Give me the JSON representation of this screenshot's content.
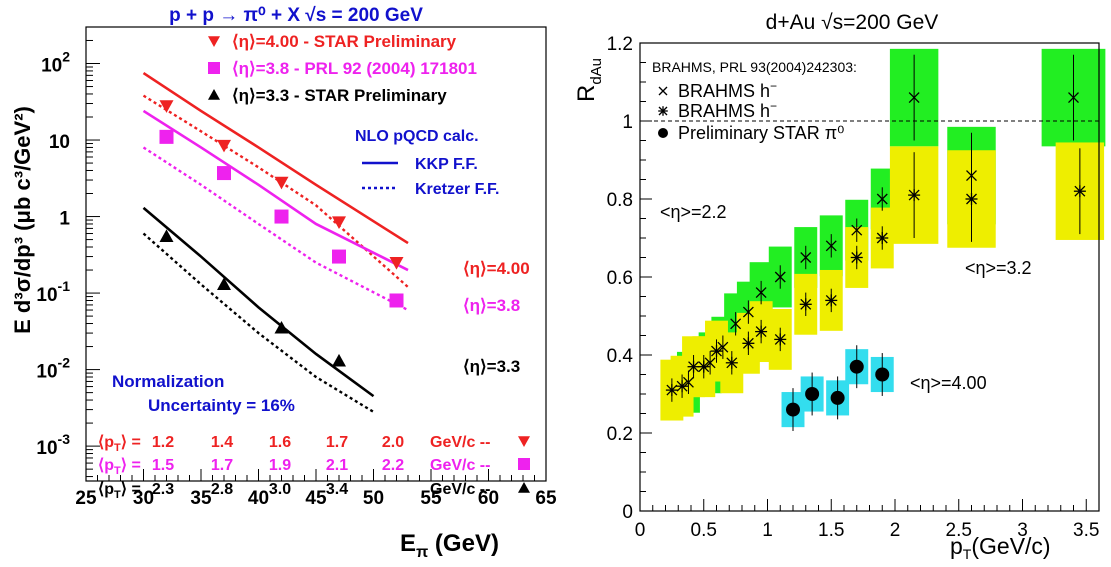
{
  "colors": {
    "red": "#ee2222",
    "magenta": "#ee22ee",
    "black": "#000000",
    "blue": "#1111cc",
    "green": "#22ee22",
    "yellow": "#eeee00",
    "cyan": "#33ddee"
  },
  "left": {
    "title": "p + p → π⁰ + X   √s = 200 GeV",
    "xlabel": "E",
    "xlabel_sub": "π",
    "xlabel_unit": " (GeV)",
    "ylabel": "E d³σ/dp³ (μb c³/GeV²)",
    "legend": {
      "red": "⟨η⟩=4.00 - STAR Preliminary",
      "magenta": "⟨η⟩=3.8 - PRL 92 (2004) 171801",
      "black": "⟨η⟩=3.3 - STAR Preliminary"
    },
    "calc_title": "NLO pQCD calc.",
    "calc_kkp": "KKP F.F.",
    "calc_kretzer": "Kretzer F.F.",
    "eta_labels": {
      "red": "⟨η⟩=4.00",
      "magenta": "⟨η⟩=3.8",
      "black": "⟨η⟩=3.3"
    },
    "norm_line1": "Normalization",
    "norm_line2": "Uncertainty = 16%",
    "pt_rows": [
      {
        "label": "⟨p",
        "sub": "T",
        "close": "⟩ =",
        "values": [
          "1.2",
          "1.4",
          "1.6",
          "1.7",
          "2.0"
        ],
        "unit": "GeV/c  --"
      },
      {
        "label": "⟨p",
        "sub": "T",
        "close": "⟩ =",
        "values": [
          "1.5",
          "1.7",
          "1.9",
          "2.1",
          "2.2"
        ],
        "unit": "GeV/c  --"
      },
      {
        "label": "⟨p",
        "sub": "T",
        "close": "⟩ =",
        "values": [
          "2.3",
          "2.8",
          "3.0",
          "3.4",
          ""
        ],
        "unit": "GeV/c  --"
      }
    ],
    "x_ticks": [
      "25",
      "30",
      "35",
      "40",
      "45",
      "50",
      "55",
      "60",
      "65"
    ],
    "y_ticks": [
      {
        "value": 100,
        "main": "10",
        "sup": "2"
      },
      {
        "value": 10,
        "main": "10",
        "sup": ""
      },
      {
        "value": 1,
        "main": "1",
        "sup": ""
      },
      {
        "value": 0.1,
        "main": "10",
        "sup": "-1"
      },
      {
        "value": 0.01,
        "main": "10",
        "sup": "-2"
      },
      {
        "value": 0.001,
        "main": "10",
        "sup": "-3"
      }
    ]
  },
  "right": {
    "title": "d+Au √s=200 GeV",
    "ylabel": "R",
    "ylabel_sub": "dAu",
    "xlabel": "p",
    "xlabel_sub": "T",
    "xlabel_unit": "(GeV/c)",
    "legend_head": "BRAHMS, PRL 93(2004)242303:",
    "legend_items": [
      "BRAHMS h",
      "BRAHMS h",
      "Preliminary STAR π⁰"
    ],
    "legend_sups": [
      "−",
      "−",
      ""
    ],
    "eta_labels": [
      "<η>=2.2",
      "<η>=3.2",
      "<η>=4.00"
    ],
    "x_ticks": [
      "0",
      "0.5",
      "1",
      "1.5",
      "2",
      "2.5",
      "3",
      "3.5"
    ],
    "y_ticks": [
      "0",
      "0.2",
      "0.4",
      "0.6",
      "0.8",
      "1",
      "1.2"
    ]
  },
  "chart_data": [
    {
      "type": "scatter",
      "title": "p + p → π⁰ + X   √s = 200 GeV",
      "xlabel": "E_π (GeV)",
      "ylabel": "E d³σ/dp³ (μb c³/GeV²)",
      "xlim": [
        25,
        65
      ],
      "ylim": [
        0.00035,
        300
      ],
      "yscale": "log",
      "series": [
        {
          "name": "⟨η⟩=4.00 - STAR Preliminary",
          "marker": "triangle-down",
          "color": "#ee2222",
          "x": [
            32,
            37,
            42,
            47,
            52
          ],
          "y": [
            28,
            8.5,
            2.8,
            0.85,
            0.25
          ]
        },
        {
          "name": "⟨η⟩=3.8 - PRL 92 (2004) 171801",
          "marker": "square",
          "color": "#ee22ee",
          "x": [
            32,
            37,
            42,
            47,
            52
          ],
          "y": [
            11,
            3.7,
            1.0,
            0.3,
            0.08
          ]
        },
        {
          "name": "⟨η⟩=3.3 - STAR Preliminary",
          "marker": "triangle-up",
          "color": "#000000",
          "x": [
            32,
            37,
            42,
            47
          ],
          "y": [
            0.55,
            0.13,
            0.035,
            0.013
          ]
        },
        {
          "name": "KKP F.F.",
          "style": "solid",
          "color": "#ee2222",
          "x": [
            30,
            35,
            40,
            45,
            53
          ],
          "y": [
            75,
            24,
            8,
            2.6,
            0.45
          ]
        },
        {
          "name": "Kretzer F.F.",
          "style": "dotted",
          "color": "#ee2222",
          "x": [
            30,
            35,
            40,
            45,
            53
          ],
          "y": [
            38,
            13,
            4.4,
            1.4,
            0.12
          ]
        },
        {
          "name": "KKP F.F.",
          "style": "solid",
          "color": "#ee22ee",
          "x": [
            30,
            35,
            40,
            45,
            53
          ],
          "y": [
            24,
            8,
            2.6,
            0.8,
            0.2
          ]
        },
        {
          "name": "Kretzer F.F.",
          "style": "dotted",
          "color": "#ee22ee",
          "x": [
            30,
            35,
            40,
            45,
            53
          ],
          "y": [
            8,
            2.6,
            0.8,
            0.25,
            0.06
          ]
        },
        {
          "name": "KKP F.F.",
          "style": "solid",
          "color": "#000000",
          "x": [
            30,
            35,
            40,
            45,
            50
          ],
          "y": [
            1.3,
            0.3,
            0.065,
            0.016,
            0.0045
          ]
        },
        {
          "name": "Kretzer F.F.",
          "style": "dotted",
          "color": "#000000",
          "x": [
            30,
            35,
            40,
            45,
            50
          ],
          "y": [
            0.6,
            0.13,
            0.03,
            0.008,
            0.0028
          ]
        }
      ]
    },
    {
      "type": "scatter",
      "title": "d+Au √s=200 GeV",
      "xlabel": "p_T(GeV/c)",
      "ylabel": "R_dAu",
      "xlim": [
        0,
        3.6
      ],
      "ylim": [
        0,
        1.2
      ],
      "reference_line": 1.0,
      "series": [
        {
          "name": "BRAHMS h⁻ (×)",
          "eta": "<η>=2.2",
          "color": "#000000",
          "band_color": "#22ee22",
          "x": [
            0.38,
            0.55,
            0.65,
            0.75,
            0.85,
            0.95,
            1.1,
            1.3,
            1.5,
            1.7,
            1.9,
            2.15,
            2.6,
            3.4
          ],
          "y": [
            0.33,
            0.38,
            0.42,
            0.48,
            0.51,
            0.56,
            0.6,
            0.65,
            0.68,
            0.72,
            0.8,
            1.06,
            0.86,
            1.06
          ]
        },
        {
          "name": "BRAHMS h⁻ (*)",
          "eta": "<η>=3.2",
          "color": "#000000",
          "band_color": "#eeee00",
          "x": [
            0.25,
            0.33,
            0.42,
            0.5,
            0.6,
            0.72,
            0.85,
            0.95,
            1.1,
            1.3,
            1.5,
            1.7,
            1.9,
            2.15,
            2.6,
            3.45
          ],
          "y": [
            0.31,
            0.32,
            0.37,
            0.37,
            0.41,
            0.38,
            0.43,
            0.46,
            0.44,
            0.53,
            0.54,
            0.65,
            0.7,
            0.81,
            0.8,
            0.82
          ]
        },
        {
          "name": "Preliminary STAR π⁰",
          "eta": "<η>=4.00",
          "color": "#000000",
          "band_color": "#33ddee",
          "x": [
            1.2,
            1.35,
            1.55,
            1.7,
            1.9
          ],
          "y": [
            0.26,
            0.3,
            0.29,
            0.37,
            0.35
          ]
        }
      ]
    }
  ]
}
